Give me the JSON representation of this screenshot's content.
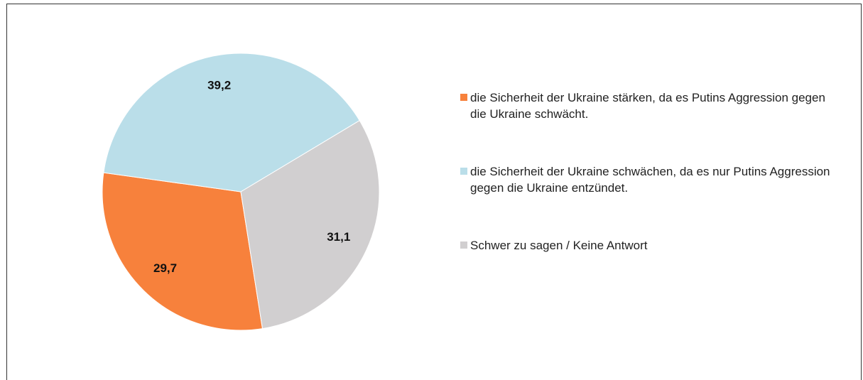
{
  "chart_data": {
    "type": "pie",
    "categories": [
      "die Sicherheit der Ukraine stärken, da es Putins Aggression gegen die Ukraine schwächt.",
      "die Sicherheit der Ukraine schwächen, da es nur Putins Aggression gegen die Ukraine entzündet.",
      "Schwer zu sagen / Keine Antwort"
    ],
    "values": [
      29.7,
      39.2,
      31.1
    ],
    "value_labels": [
      "29,7",
      "39,2",
      "31,1"
    ],
    "colors": [
      "#f7813c",
      "#badee9",
      "#d1cfd0"
    ]
  }
}
